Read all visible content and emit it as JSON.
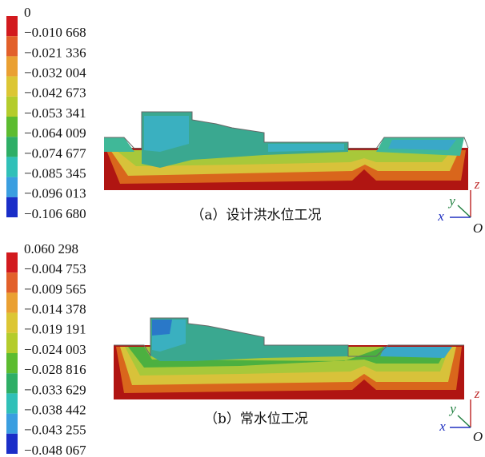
{
  "panels": [
    {
      "legend": [
        "0",
        "−0.010 668",
        "−0.021 336",
        "−0.032 004",
        "−0.042 673",
        "−0.053 341",
        "−0.064 009",
        "−0.074 677",
        "−0.085 345",
        "−0.096 013",
        "−0.106 680"
      ],
      "caption": "（a）设计洪水位工况",
      "axes": {
        "z": "z",
        "y": "y",
        "x": "x",
        "origin": "O"
      }
    },
    {
      "legend": [
        "0.060 298",
        "−0.004 753",
        "−0.009 565",
        "−0.014 378",
        "−0.019 191",
        "−0.024 003",
        "−0.028 816",
        "−0.033 629",
        "−0.038 442",
        "−0.043 255",
        "−0.048 067"
      ],
      "caption": "（b）常水位工况",
      "axes": {
        "z": "z",
        "y": "y",
        "x": "x",
        "origin": "O"
      }
    }
  ]
}
